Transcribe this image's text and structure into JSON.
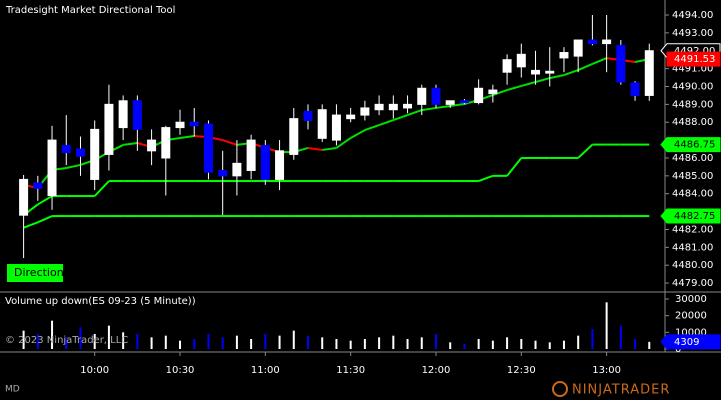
{
  "chart_data": {
    "type": "candlestick",
    "title": "Tradesight Market Directional Tool",
    "categories": [
      null,
      null,
      null,
      null,
      null,
      "10:00",
      null,
      null,
      null,
      null,
      null,
      "10:30",
      null,
      null,
      null,
      null,
      null,
      "11:00",
      null,
      null,
      null,
      null,
      null,
      "11:30",
      null,
      null,
      null,
      null,
      null,
      "12:00",
      null,
      null,
      null,
      null,
      null,
      "12:30",
      null,
      null,
      null,
      null,
      null,
      "13:00",
      null,
      null,
      null
    ],
    "open": [
      4482.8,
      4484.6,
      4483.9,
      4486.7,
      4486.5,
      4484.8,
      4486.2,
      4487.7,
      4489.2,
      4486.4,
      4486.0,
      4487.7,
      4488.0,
      4487.9,
      4485.3,
      4485.0,
      4485.3,
      4486.7,
      4484.8,
      4486.2,
      4488.6,
      4487.1,
      4487.0,
      4488.2,
      4488.4,
      4488.7,
      4488.7,
      4488.8,
      4489.0,
      4489.9,
      4489.0,
      4489.2,
      4489.1,
      4489.6,
      4490.8,
      4491.1,
      4490.7,
      4490.75,
      4491.6,
      4491.7,
      4492.6,
      4492.4,
      4492.3,
      4490.2,
      4489.5
    ],
    "high": [
      4485.05,
      4485.0,
      4487.8,
      4488.4,
      4487.2,
      4488.1,
      4490.1,
      4489.5,
      4489.5,
      4487.6,
      4487.8,
      4488.7,
      4488.8,
      4488.1,
      4486.4,
      4487.0,
      4487.3,
      4487.0,
      4487.0,
      4488.8,
      4489.0,
      4489.0,
      4489.0,
      4488.8,
      4489.2,
      4489.5,
      4489.5,
      4489.5,
      4490.1,
      4490.1,
      4489.2,
      4489.3,
      4490.4,
      4490.1,
      4491.8,
      4492.4,
      4492.0,
      4492.2,
      4492.2,
      4492.6,
      4494.0,
      4494.0,
      4492.6,
      4490.3,
      4492.4
    ],
    "low": [
      4480.4,
      4483.6,
      4483.1,
      4485.6,
      4485.0,
      4484.2,
      4485.3,
      4487.0,
      4486.4,
      4485.6,
      4483.9,
      4487.3,
      4487.2,
      4484.8,
      4482.8,
      4483.9,
      4484.8,
      4484.5,
      4484.2,
      4485.9,
      4487.6,
      4486.9,
      4486.7,
      4488.0,
      4488.1,
      4488.4,
      4488.2,
      4488.5,
      4488.4,
      4488.8,
      4488.8,
      4489.0,
      4489.0,
      4489.1,
      4490.1,
      4490.5,
      4490.1,
      4490.0,
      4490.8,
      4490.8,
      4492.3,
      4490.8,
      4490.1,
      4489.2,
      4489.2
    ],
    "close": [
      4484.8,
      4484.3,
      4487.0,
      4486.3,
      4486.1,
      4487.6,
      4489.0,
      4489.2,
      4487.6,
      4487.0,
      4487.7,
      4488.0,
      4487.8,
      4485.2,
      4485.0,
      4485.7,
      4487.0,
      4484.8,
      4486.4,
      4488.2,
      4488.1,
      4488.7,
      4488.4,
      4488.4,
      4488.8,
      4489.0,
      4489.0,
      4489.0,
      4489.9,
      4489.0,
      4489.2,
      4489.1,
      4489.9,
      4489.8,
      4491.5,
      4491.8,
      4490.9,
      4490.85,
      4491.9,
      4492.6,
      4492.4,
      4492.6,
      4490.25,
      4489.5,
      4492.0
    ],
    "up_color": "#ffffff",
    "down_color": "#0000ff",
    "last_label": "4492.00",
    "ylim": [
      4478.5,
      4494.84
    ],
    "yticks": [
      {
        "value": 4494,
        "label": "4494.00"
      },
      {
        "value": 4493,
        "label": "4493.00"
      },
      {
        "value": 4491,
        "label": "4491.00"
      },
      {
        "value": 4490,
        "label": "4490.00"
      },
      {
        "value": 4489,
        "label": "4489.00"
      },
      {
        "value": 4488,
        "label": "4488.00"
      },
      {
        "value": 4486,
        "label": "4486.00"
      },
      {
        "value": 4485,
        "label": "4485.00"
      },
      {
        "value": 4484,
        "label": "4484.00"
      },
      {
        "value": 4482,
        "label": "4482.00"
      },
      {
        "value": 4481,
        "label": "4481.00"
      },
      {
        "value": 4480,
        "label": "4480.00"
      },
      {
        "value": 4479,
        "label": "4479.00"
      }
    ],
    "lines": [
      {
        "color": "#00e000",
        "down_color": "#ff0000",
        "last_label": "4491.53",
        "values": [
          4484.49,
          4484.32,
          4485.33,
          4485.44,
          4485.61,
          4485.89,
          4486.33,
          4486.73,
          4486.84,
          4486.61,
          4487.0,
          4487.12,
          4487.23,
          4487.17,
          4487.0,
          4486.73,
          4486.84,
          4486.56,
          4486.33,
          4486.33,
          4486.56,
          4486.45,
          4486.56,
          4487.12,
          4487.56,
          4487.84,
          4488.12,
          4488.4,
          4488.68,
          4488.8,
          4488.91,
          4489.02,
          4489.24,
          4489.52,
          4489.8,
          4490.03,
          4490.25,
          4490.47,
          4490.64,
          4490.92,
          4491.26,
          4491.59,
          4491.48,
          4491.37,
          4491.53
        ]
      },
      {
        "color": "#00ff00",
        "last_label": "4486.75",
        "values": [
          4482.8,
          4483.4,
          4483.87,
          4483.87,
          4483.87,
          4483.87,
          4484.71,
          4484.71,
          4484.71,
          4484.71,
          4484.71,
          4484.71,
          4484.71,
          4484.71,
          4484.71,
          4484.71,
          4484.71,
          4484.71,
          4484.71,
          4484.71,
          4484.71,
          4484.71,
          4484.71,
          4484.71,
          4484.71,
          4484.71,
          4484.71,
          4484.71,
          4484.71,
          4484.71,
          4484.71,
          4484.71,
          4484.71,
          4485.0,
          4485.0,
          4486.0,
          4486.0,
          4486.0,
          4486.0,
          4486.0,
          4486.75,
          4486.75,
          4486.75,
          4486.75,
          4486.75
        ]
      },
      {
        "color": "#00ff00",
        "last_label": "4482.75",
        "values": [
          4482.1,
          4482.4,
          4482.75,
          4482.75,
          4482.75,
          4482.75,
          4482.75,
          4482.75,
          4482.75,
          4482.75,
          4482.75,
          4482.75,
          4482.75,
          4482.75,
          4482.75,
          4482.75,
          4482.75,
          4482.75,
          4482.75,
          4482.75,
          4482.75,
          4482.75,
          4482.75,
          4482.75,
          4482.75,
          4482.75,
          4482.75,
          4482.75,
          4482.75,
          4482.75,
          4482.75,
          4482.75,
          4482.75,
          4482.75,
          4482.75,
          4482.75,
          4482.75,
          4482.75,
          4482.75,
          4482.75,
          4482.75,
          4482.75,
          4482.75,
          4482.75,
          4482.75
        ]
      }
    ],
    "volume": {
      "title": "Volume up down(ES 09-23 (5 Minute))",
      "values": [
        11000,
        9000,
        17000,
        7000,
        13000,
        9000,
        14000,
        10000,
        9000,
        7000,
        8000,
        5000,
        6000,
        9000,
        7000,
        8000,
        6000,
        9000,
        8000,
        11000,
        8000,
        7000,
        6000,
        5000,
        6000,
        7000,
        8000,
        6000,
        7000,
        9000,
        4000,
        3000,
        6000,
        5000,
        7000,
        6000,
        5000,
        4000,
        5000,
        8000,
        12000,
        28000,
        14000,
        6000,
        4309
      ],
      "ylim": [
        -1800,
        33600
      ],
      "yticks": [
        30000,
        20000,
        10000,
        0
      ],
      "last_label": "4309",
      "label_color": "#0000ff"
    },
    "annotations": {
      "direction": "Direction",
      "copyright": "© 2023 NinjaTrader, LLC",
      "footer": "MD",
      "logo": "NINJATRADER"
    }
  }
}
